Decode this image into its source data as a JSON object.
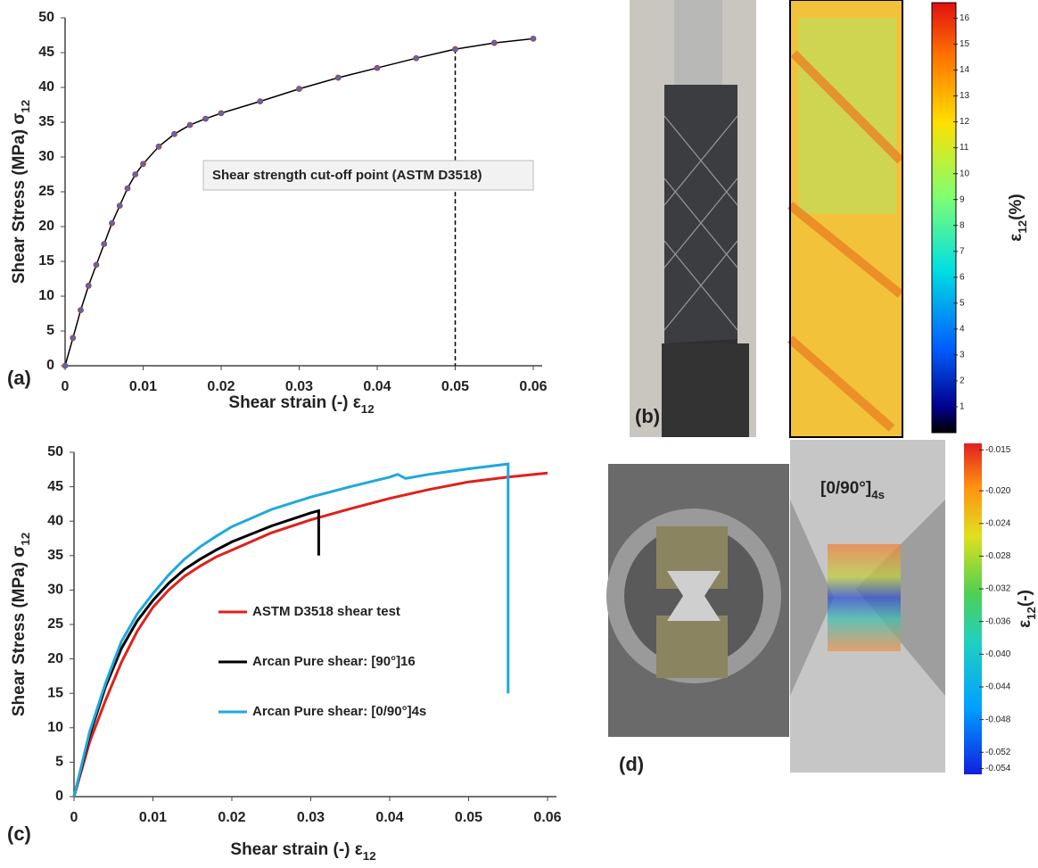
{
  "chart_data": [
    {
      "type": "line",
      "panel_label": "(a)",
      "x_label": [
        "Shear strain  (-) ε",
        "12"
      ],
      "y_label": [
        "Shear Stress (MPa) σ",
        "12"
      ],
      "xlim": [
        0,
        0.06
      ],
      "ylim": [
        0,
        50
      ],
      "xticks": [
        0,
        0.01,
        0.02,
        0.03,
        0.04,
        0.05,
        0.06
      ],
      "yticks": [
        0,
        5,
        10,
        15,
        20,
        25,
        30,
        35,
        40,
        45,
        50
      ],
      "annotation": "Shear strength cut-off point (ASTM D3518)",
      "cutoff": {
        "x": 0.05,
        "y": 45.5
      },
      "series": [
        {
          "color": "#4a6fb5",
          "line_color": "#000000",
          "markers": true,
          "x": [
            0,
            0.001,
            0.002,
            0.003,
            0.004,
            0.005,
            0.006,
            0.007,
            0.008,
            0.009,
            0.01,
            0.012,
            0.014,
            0.016,
            0.018,
            0.02,
            0.025,
            0.03,
            0.035,
            0.04,
            0.045,
            0.05,
            0.055,
            0.06
          ],
          "values": [
            0,
            4,
            8,
            11.5,
            14.5,
            17.5,
            20.5,
            23,
            25.5,
            27.5,
            29,
            31.5,
            33.3,
            34.6,
            35.5,
            36.3,
            38,
            39.8,
            41.4,
            42.8,
            44.2,
            45.5,
            46.4,
            47
          ]
        }
      ]
    },
    {
      "type": "line",
      "panel_label": "(c)",
      "x_label": [
        "Shear strain (-) ε",
        "12"
      ],
      "y_label": [
        "Shear Stress (MPa) σ",
        "12"
      ],
      "xlim": [
        0,
        0.06
      ],
      "ylim": [
        0,
        50
      ],
      "xticks": [
        0,
        0.01,
        0.02,
        0.03,
        0.04,
        0.05,
        0.06
      ],
      "yticks": [
        0,
        5,
        10,
        15,
        20,
        25,
        30,
        35,
        40,
        45,
        50
      ],
      "series": [
        {
          "name": "ASTM D3518 shear test",
          "color": "#e0201b",
          "x": [
            0,
            0.002,
            0.004,
            0.006,
            0.008,
            0.01,
            0.012,
            0.014,
            0.016,
            0.018,
            0.02,
            0.025,
            0.03,
            0.035,
            0.04,
            0.045,
            0.05,
            0.055,
            0.06
          ],
          "values": [
            0,
            8,
            14,
            19.5,
            24,
            27.5,
            30,
            32,
            33.5,
            34.8,
            35.8,
            38.3,
            40.2,
            41.8,
            43.3,
            44.6,
            45.7,
            46.4,
            47
          ]
        },
        {
          "name": "Arcan Pure shear: [90°]16",
          "color": "#000000",
          "x": [
            0,
            0.002,
            0.004,
            0.006,
            0.008,
            0.01,
            0.012,
            0.014,
            0.016,
            0.018,
            0.02,
            0.025,
            0.03,
            0.031,
            0.031
          ],
          "values": [
            0,
            9,
            16,
            21.5,
            25.5,
            28.5,
            31,
            33,
            34.5,
            35.8,
            37,
            39.3,
            41.2,
            41.5,
            35
          ]
        },
        {
          "name": "Arcan Pure shear: [0/90°]4s",
          "color": "#1fa8dc",
          "x": [
            0,
            0.002,
            0.004,
            0.006,
            0.008,
            0.01,
            0.012,
            0.014,
            0.016,
            0.018,
            0.02,
            0.025,
            0.03,
            0.035,
            0.04,
            0.041,
            0.042,
            0.045,
            0.05,
            0.055,
            0.055
          ],
          "values": [
            0,
            9.5,
            16.5,
            22.5,
            26.5,
            29.5,
            32.2,
            34.5,
            36.3,
            37.8,
            39.2,
            41.7,
            43.5,
            45,
            46.4,
            46.8,
            46.2,
            46.8,
            47.6,
            48.3,
            15
          ]
        }
      ]
    }
  ],
  "images": [
    {
      "panel_label": "(b)",
      "colorbar": {
        "label": [
          "ε",
          "12",
          "(%)"
        ],
        "lim": [
          0,
          16.6
        ],
        "ticks": [
          1,
          2,
          3,
          4,
          5,
          6,
          7,
          8,
          9,
          10,
          11,
          12,
          13,
          14,
          15,
          16
        ]
      }
    },
    {
      "panel_label": "(d)",
      "caption": [
        "[0/90°]",
        "4s"
      ],
      "colorbar": {
        "label": [
          "ε",
          "12",
          "(-)"
        ],
        "lim": [
          -0.0547,
          -0.0142
        ],
        "ticks": [
          {
            "value": -0.015,
            "label": "-0.015"
          },
          {
            "value": -0.02,
            "label": "-0.020"
          },
          {
            "value": -0.024,
            "label": "-0.024"
          },
          {
            "value": -0.028,
            "label": "-0.028"
          },
          {
            "value": -0.032,
            "label": "-0.032"
          },
          {
            "value": -0.036,
            "label": "-0.036"
          },
          {
            "value": -0.04,
            "label": "-0.040"
          },
          {
            "value": -0.044,
            "label": "-0.044"
          },
          {
            "value": -0.048,
            "label": "-0.048"
          },
          {
            "value": -0.052,
            "label": "-0.052"
          },
          -0.054
        ]
      }
    }
  ]
}
